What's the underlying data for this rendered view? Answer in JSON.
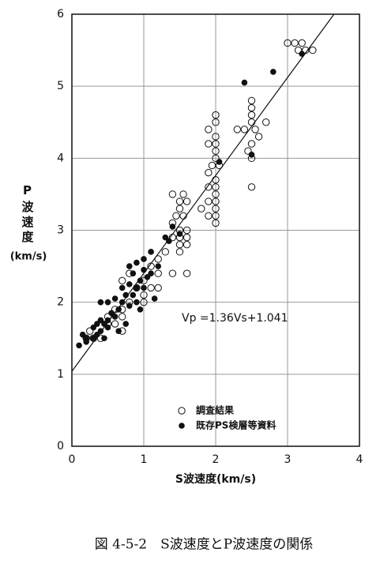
{
  "chart_data": {
    "type": "scatter",
    "x_label": "S波速度(km/s)",
    "y_label": "P波速度",
    "y_label_unit": "(km/s)",
    "annotation": "Vp =1.36Vs+1.041",
    "caption": "図 4-5-2　S波速度とP波速度の関係",
    "xlim": [
      0,
      4
    ],
    "ylim": [
      0,
      6
    ],
    "xticks": [
      0,
      1,
      2,
      3,
      4
    ],
    "yticks": [
      0,
      1,
      2,
      3,
      4,
      5,
      6
    ],
    "grid": true,
    "legend": "bottom-center",
    "series": [
      {
        "name": "調査結果",
        "color": "#111111",
        "marker_fill": "none",
        "x": [
          3.0,
          3.1,
          3.2,
          3.15,
          3.25,
          3.35,
          2.5,
          2.5,
          2.5,
          2.5,
          2.7,
          2.4,
          2.55,
          2.3,
          2.6,
          2.5,
          2.45,
          2.5,
          2.5,
          2.0,
          2.0,
          1.9,
          2.0,
          2.0,
          1.9,
          2.0,
          2.0,
          1.95,
          2.05,
          1.9,
          2.0,
          1.9,
          2.0,
          2.0,
          1.9,
          2.0,
          2.0,
          1.8,
          1.9,
          2.0,
          2.0,
          1.4,
          1.55,
          1.5,
          1.6,
          1.5,
          1.45,
          1.55,
          1.4,
          1.5,
          1.6,
          1.4,
          1.5,
          1.6,
          1.5,
          1.6,
          1.5,
          1.3,
          1.4,
          1.6,
          1.2,
          1.1,
          1.2,
          1.0,
          1.1,
          1.2,
          0.9,
          1.0,
          1.0,
          0.8,
          0.7,
          0.8,
          0.7,
          0.6,
          0.7,
          0.6,
          0.7,
          0.5,
          0.4,
          0.3,
          0.2,
          0.25,
          0.5
        ],
        "values": [
          5.6,
          5.6,
          5.6,
          5.5,
          5.5,
          5.5,
          4.8,
          4.7,
          4.6,
          4.5,
          4.5,
          4.4,
          4.4,
          4.4,
          4.3,
          4.2,
          4.1,
          4.0,
          3.6,
          4.6,
          4.5,
          4.4,
          4.3,
          4.2,
          4.2,
          4.1,
          4.0,
          3.9,
          3.9,
          3.8,
          3.7,
          3.6,
          3.6,
          3.5,
          3.4,
          3.4,
          3.3,
          3.3,
          3.2,
          3.2,
          3.1,
          3.5,
          3.5,
          3.4,
          3.4,
          3.3,
          3.2,
          3.2,
          3.1,
          3.0,
          3.0,
          2.9,
          2.9,
          2.9,
          2.8,
          2.8,
          2.7,
          2.7,
          2.4,
          2.4,
          2.6,
          2.5,
          2.4,
          2.3,
          2.2,
          2.2,
          2.2,
          2.1,
          2.0,
          2.4,
          2.3,
          2.0,
          1.9,
          1.9,
          1.8,
          1.7,
          1.6,
          1.7,
          1.5,
          1.5,
          1.5,
          1.6,
          1.8
        ]
      },
      {
        "name": "既存PS検層等資料",
        "color": "#111111",
        "marker_fill": "#111111",
        "x": [
          3.2,
          2.8,
          2.4,
          2.5,
          2.05,
          1.4,
          1.3,
          1.5,
          1.35,
          1.1,
          1.0,
          0.9,
          1.2,
          0.8,
          1.0,
          1.1,
          0.85,
          0.95,
          1.05,
          0.9,
          0.8,
          0.7,
          1.0,
          0.75,
          0.85,
          0.9,
          0.6,
          0.7,
          0.8,
          0.65,
          0.5,
          0.4,
          0.55,
          0.6,
          0.5,
          0.45,
          0.4,
          0.35,
          0.3,
          0.4,
          0.35,
          0.3,
          0.2,
          0.15,
          0.1,
          0.2,
          0.45,
          0.5,
          0.75,
          0.65,
          1.15,
          0.95
        ],
        "values": [
          5.45,
          5.2,
          5.05,
          4.05,
          3.95,
          3.05,
          2.9,
          2.95,
          2.85,
          2.7,
          2.6,
          2.55,
          2.5,
          2.5,
          2.45,
          2.4,
          2.4,
          2.3,
          2.35,
          2.2,
          2.25,
          2.2,
          2.2,
          2.1,
          2.1,
          2.0,
          2.05,
          2.0,
          1.95,
          1.9,
          2.0,
          2.0,
          1.85,
          1.8,
          1.75,
          1.7,
          1.75,
          1.7,
          1.65,
          1.6,
          1.55,
          1.5,
          1.5,
          1.55,
          1.4,
          1.45,
          1.5,
          1.65,
          1.7,
          1.6,
          2.05,
          1.9
        ]
      }
    ],
    "fit_line": {
      "color": "#111111",
      "x": [
        0,
        3.646
      ],
      "values": [
        1.041,
        6
      ]
    }
  }
}
